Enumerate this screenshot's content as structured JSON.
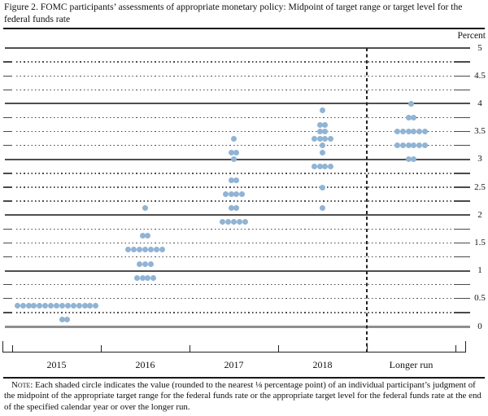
{
  "figure": {
    "title": "Figure 2. FOMC participants’ assessments of appropriate monetary policy: Midpoint of target range or target level for the federal funds rate",
    "note_label": "Note:",
    "note_text": " Each shaded circle indicates the value (rounded to the nearest ⅛ percentage point) of an individual participant’s judgment of the midpoint of the appropriate target range for the federal funds rate or the appropriate target level for the federal funds rate at the end of the specified calendar year or over the longer run."
  },
  "chart_data": {
    "type": "scatter",
    "subtype": "fomc-dot-plot",
    "title": "FOMC participants’ assessments of appropriate monetary policy: Midpoint of target range or target level for the federal funds rate",
    "ylabel": "Percent",
    "ylim": [
      0,
      5
    ],
    "ytick_labels": [
      "5",
      "4.5",
      "4",
      "3.5",
      "3",
      "2.5",
      "2",
      "1.5",
      "1",
      "0.5",
      "0"
    ],
    "ytick_values": [
      5,
      4.5,
      4,
      3.5,
      3,
      2.5,
      2,
      1.5,
      1,
      0.5,
      0
    ],
    "grid": {
      "solid_values": [
        5,
        4,
        3,
        2,
        1,
        0
      ],
      "dotted_step": 0.25
    },
    "categories": [
      "2015",
      "2016",
      "2017",
      "2018",
      "Longer run"
    ],
    "separator": {
      "type": "dashed-vertical",
      "between": [
        "2018",
        "Longer run"
      ]
    },
    "dot_color": "#91b4d4",
    "units": "percent (dots rounded to nearest 1/8 percentage point)",
    "series": [
      {
        "category": "2015",
        "dots": [
          {
            "value": 0.375,
            "count": 15
          },
          {
            "value": 0.125,
            "count": 2,
            "x_offset": 10
          }
        ]
      },
      {
        "category": "2016",
        "dots": [
          {
            "value": 2.125,
            "count": 1
          },
          {
            "value": 1.625,
            "count": 2
          },
          {
            "value": 1.375,
            "count": 7
          },
          {
            "value": 1.125,
            "count": 3
          },
          {
            "value": 0.875,
            "count": 4
          }
        ]
      },
      {
        "category": "2017",
        "dots": [
          {
            "value": 3.375,
            "count": 1
          },
          {
            "value": 3.125,
            "count": 2
          },
          {
            "value": 3.0,
            "count": 1
          },
          {
            "value": 2.625,
            "count": 2
          },
          {
            "value": 2.375,
            "count": 4
          },
          {
            "value": 2.125,
            "count": 2
          },
          {
            "value": 1.875,
            "count": 5
          }
        ]
      },
      {
        "category": "2018",
        "dots": [
          {
            "value": 3.875,
            "count": 1
          },
          {
            "value": 3.625,
            "count": 2
          },
          {
            "value": 3.5,
            "count": 2
          },
          {
            "value": 3.375,
            "count": 4
          },
          {
            "value": 3.25,
            "count": 1
          },
          {
            "value": 3.125,
            "count": 1
          },
          {
            "value": 2.875,
            "count": 4
          },
          {
            "value": 2.5,
            "count": 1
          },
          {
            "value": 2.125,
            "count": 1
          }
        ]
      },
      {
        "category": "Longer run",
        "dots": [
          {
            "value": 4.0,
            "count": 1
          },
          {
            "value": 3.75,
            "count": 2
          },
          {
            "value": 3.5,
            "count": 6
          },
          {
            "value": 3.25,
            "count": 6
          },
          {
            "value": 3.0,
            "count": 2
          }
        ]
      }
    ]
  }
}
